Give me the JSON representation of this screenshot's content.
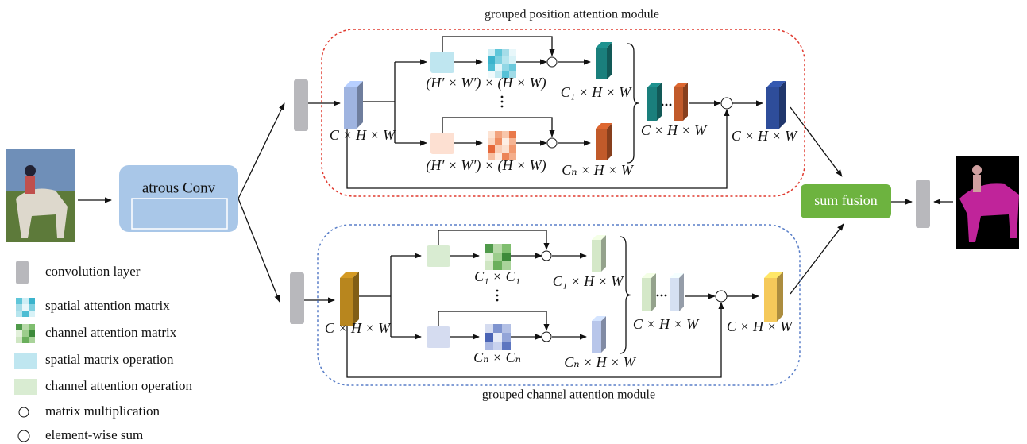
{
  "atrous_conv": "atrous Conv",
  "sum_fusion": "sum fusion",
  "position_module": {
    "title": "grouped position attention module",
    "input_label": "C × H × W",
    "branches": [
      {
        "matrix_label": "(H′ × W′) × (H × W)",
        "output_label": "C₁ × H × W"
      },
      {
        "matrix_label": "(H′ × W′) × (H × W)",
        "output_label": "Cₙ × H × W"
      }
    ],
    "concat_label": "C × H × W",
    "output_label": "C × H × W"
  },
  "channel_module": {
    "title": "grouped channel attention module",
    "input_label": "C × H × W",
    "branches": [
      {
        "matrix_label": "C₁ × C₁",
        "output_label": "C₁ × H × W"
      },
      {
        "matrix_label": "Cₙ × Cₙ",
        "output_label": "Cₙ × H × W"
      }
    ],
    "concat_label": "C × H × W",
    "output_label": "C × H × W"
  },
  "legend": [
    "convolution layer",
    "spatial attention matrix",
    "channel attention matrix",
    "spatial matrix operation",
    "channel attention operation",
    "matrix multiplication",
    "element-wise sum"
  ]
}
